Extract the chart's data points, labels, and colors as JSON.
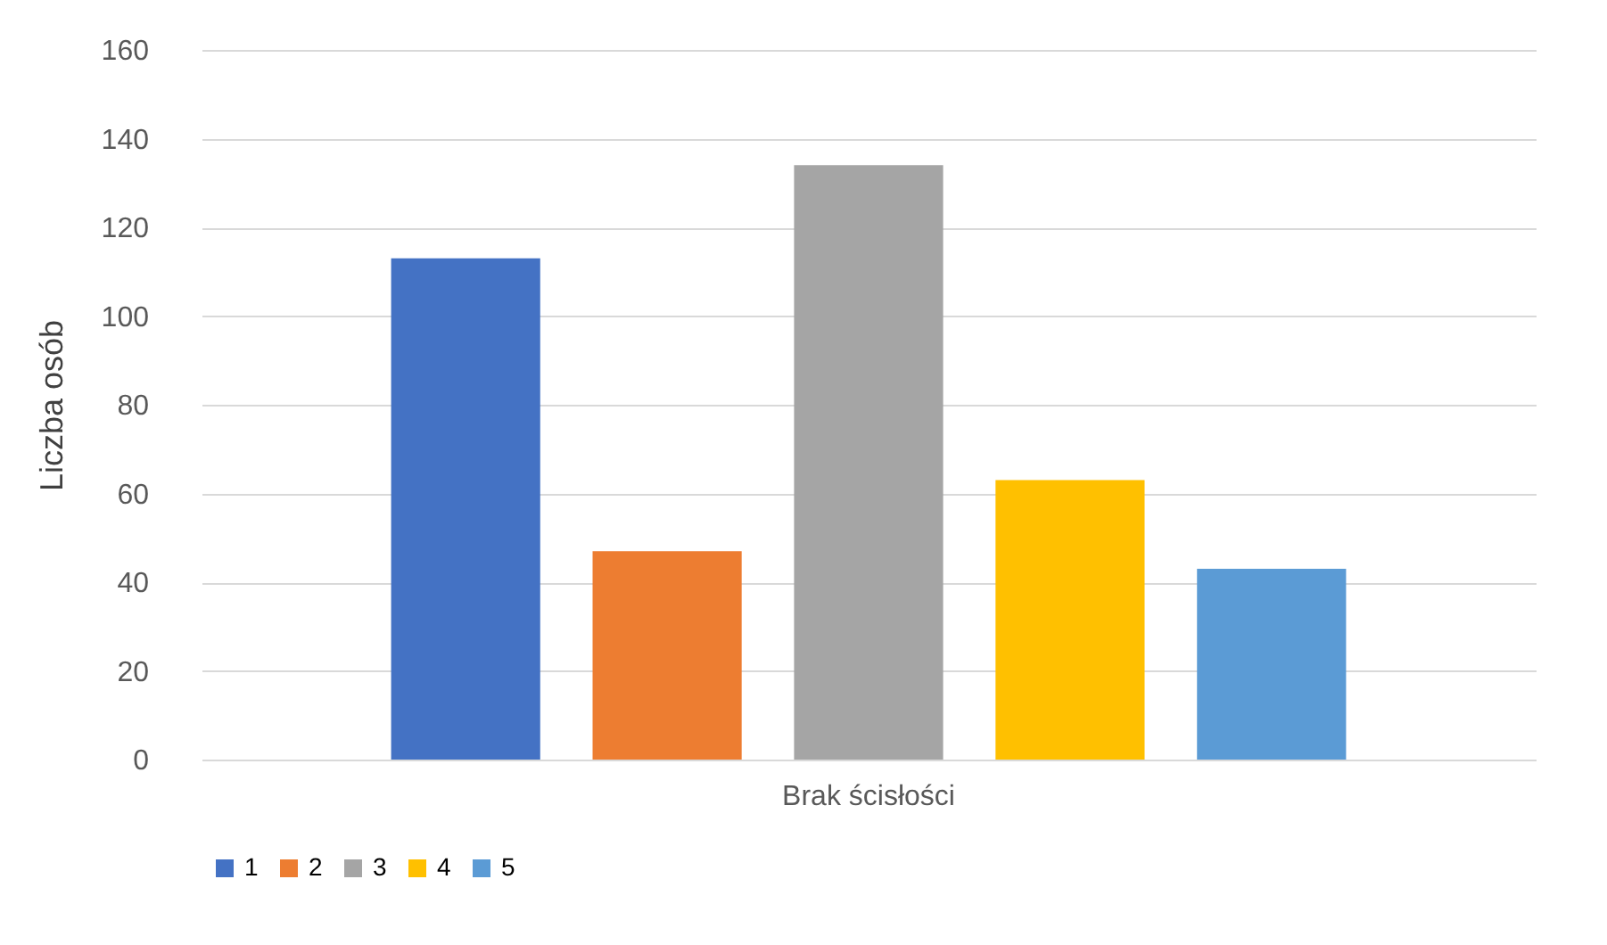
{
  "chart_data": {
    "type": "bar",
    "ylabel": "Liczba osób",
    "categories": [
      "Brak ścisłości"
    ],
    "series": [
      {
        "name": "1",
        "color": "#4472c4",
        "values": [
          113
        ]
      },
      {
        "name": "2",
        "color": "#ed7d31",
        "values": [
          47
        ]
      },
      {
        "name": "3",
        "color": "#a5a5a5",
        "values": [
          134
        ]
      },
      {
        "name": "4",
        "color": "#ffc000",
        "values": [
          63
        ]
      },
      {
        "name": "5",
        "color": "#5b9bd5",
        "values": [
          43
        ]
      }
    ],
    "ylim": [
      0,
      160
    ],
    "yticks": [
      0,
      20,
      40,
      60,
      80,
      100,
      120,
      140,
      160
    ],
    "grid": "y",
    "legend": "bottom"
  }
}
